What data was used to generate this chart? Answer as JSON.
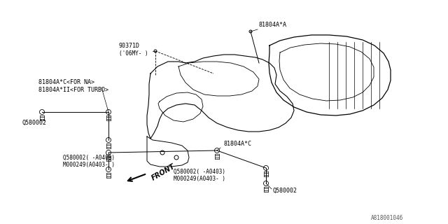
{
  "bg_color": "#ffffff",
  "line_color": "#000000",
  "diagram_id": "A818001046",
  "labels": {
    "part_81804A_A": "81804A*A",
    "part_81804A_C_NA": "81804A*C<FOR NA>",
    "part_81804A_II_TURBO": "81804A*II<FOR TURBO>",
    "part_81804A_C": "81804A*C",
    "part_Q580002_left": "Q580002",
    "part_Q580002_mid_line1": "Q580002( -A0403)",
    "part_Q580002_mid_line2": "M000249(A0403- )",
    "part_Q580002_right_line1": "Q580002( -A0403)",
    "part_Q580002_right_line2": "M000249(A0403- )",
    "part_Q580002_bottom": "Q580002",
    "part_90371D": "90371D",
    "part_06MY": "('06MY- )"
  },
  "font_size": 6.0,
  "small_font": 5.5
}
